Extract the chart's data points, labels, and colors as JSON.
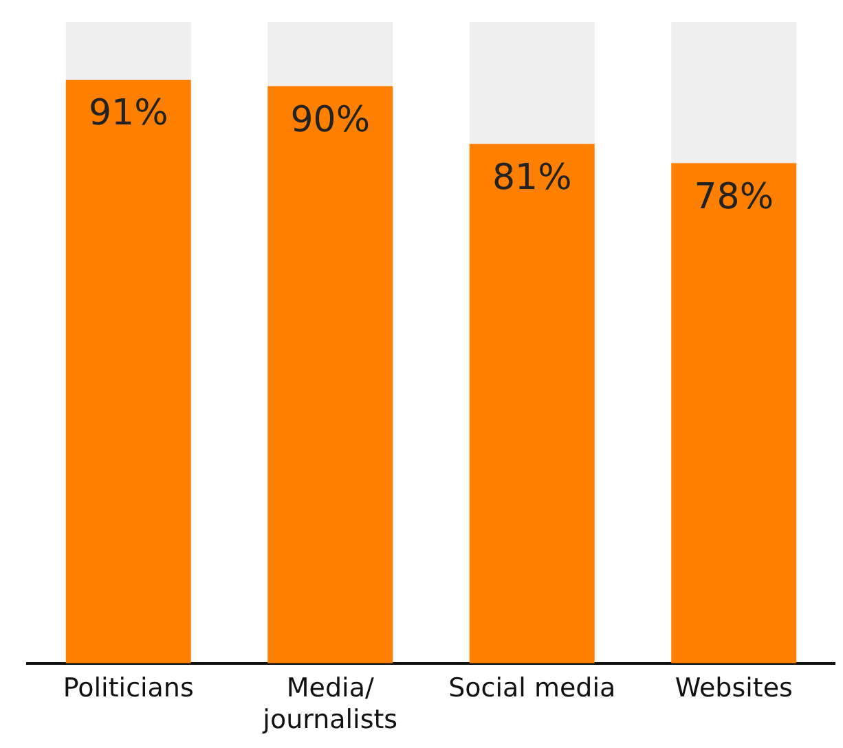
{
  "chart_data": {
    "type": "bar",
    "stacked": true,
    "categories": [
      "Politicians",
      "Media/ journalists",
      "Social media",
      "Websites"
    ],
    "series": [
      {
        "color": "#ff8000",
        "values": [
          91,
          90,
          81,
          78
        ],
        "value_labels": [
          "91%",
          "90%",
          "81%",
          "78%"
        ]
      },
      {
        "color": "#efefef",
        "values": [
          9,
          10,
          19,
          22
        ]
      }
    ],
    "tick_labels": "x",
    "grid": false,
    "legend": false
  }
}
